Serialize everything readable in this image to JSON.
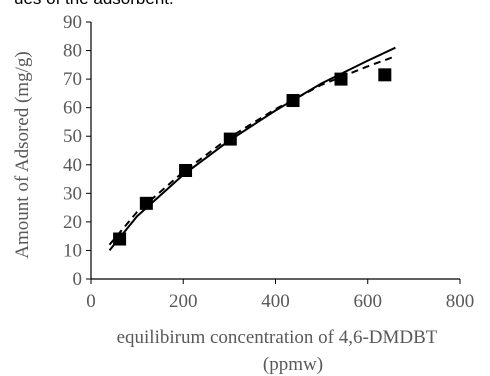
{
  "caption_fragment": "ues of the adsorbent.",
  "chart_data": {
    "type": "scatter",
    "xlabel_line1": "equilibirum concentration of 4,6-DMDBT",
    "xlabel_line2": "(ppmw)",
    "ylabel": "Amount of Adsored (mg/g)",
    "xlim": [
      0,
      800
    ],
    "ylim": [
      0,
      90
    ],
    "x_ticks": [
      0,
      200,
      400,
      600,
      800
    ],
    "y_ticks": [
      0,
      10,
      20,
      30,
      40,
      50,
      60,
      70,
      80,
      90
    ],
    "grid": false,
    "legend": "none",
    "series": [
      {
        "style": "markers",
        "marker": "square",
        "color": "#000000",
        "x": [
          62,
          120,
          205,
          302,
          438,
          542,
          637
        ],
        "y": [
          14,
          26.5,
          38,
          49,
          62.5,
          70,
          71.5
        ]
      },
      {
        "style": "solid-line",
        "color": "#000000",
        "x": [
          40,
          100,
          200,
          300,
          400,
          500,
          600,
          660
        ],
        "y": [
          10,
          22,
          36.5,
          48.5,
          59,
          68.5,
          76.5,
          81
        ]
      },
      {
        "style": "dashed-line",
        "color": "#000000",
        "x": [
          40,
          100,
          200,
          300,
          400,
          500,
          600,
          660
        ],
        "y": [
          12,
          23.5,
          37.5,
          49.5,
          59.5,
          68,
          74.5,
          78
        ]
      }
    ]
  }
}
